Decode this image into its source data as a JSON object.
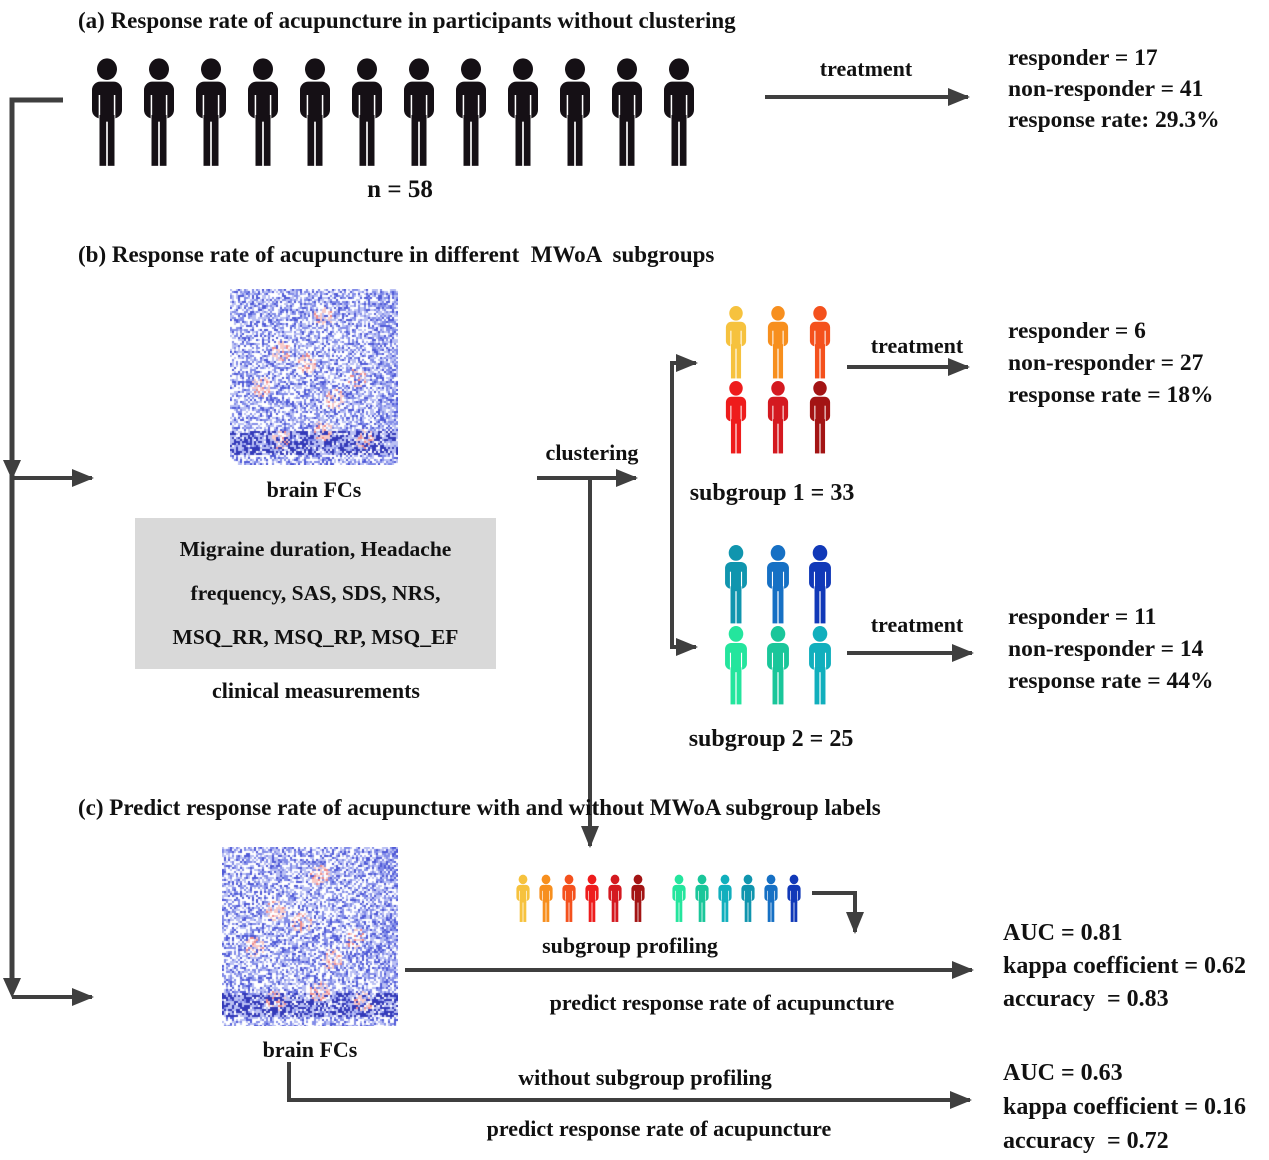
{
  "figure": {
    "arrow_color": "#3f3f3f",
    "clinical_box_bg": "#d9d9d9"
  },
  "section_a": {
    "title": "(a) Response rate of acupuncture in participants without clustering",
    "people_colors": [
      "#151015",
      "#151015",
      "#151015",
      "#151015",
      "#151015",
      "#151015",
      "#151015",
      "#151015",
      "#151015",
      "#151015",
      "#151015",
      "#151015"
    ],
    "n_label": "n = 58",
    "treatment_label": "treatment",
    "results": [
      "responder = 17",
      "non-responder = 41",
      "response rate: 29.3%"
    ]
  },
  "section_b": {
    "title": "(b) Response rate of acupuncture in different  MWoA  subgroups",
    "brain_fc_label": "brain FCs",
    "clinical_box": [
      "Migraine duration, Headache",
      "frequency, SAS, SDS, NRS,",
      "MSQ_RR, MSQ_RP, MSQ_EF"
    ],
    "clinical_label": "clinical measurements",
    "clustering_label": "clustering",
    "subgroup1": {
      "people_colors": [
        "#f6c23e",
        "#f78f1e",
        "#f4511d",
        "#ee1c1c",
        "#d41920",
        "#a31414"
      ],
      "label": "subgroup 1 = 33",
      "treatment_label": "treatment",
      "results": [
        "responder = 6",
        "non-responder = 27",
        "response rate = 18%"
      ]
    },
    "subgroup2": {
      "people_colors": [
        "#1095ae",
        "#1670c4",
        "#1139b8",
        "#24e59d",
        "#1ac69a",
        "#11afbd"
      ],
      "label": "subgroup 2 = 25",
      "treatment_label": "treatment",
      "results": [
        "responder = 11",
        "non-responder = 14",
        "response rate = 44%"
      ]
    }
  },
  "section_c": {
    "title": "(c) Predict response rate of acupuncture with and without MWoA subgroup labels",
    "brain_fc_label": "brain FCs",
    "profile_people_colors": [
      "#f6c23e",
      "#f78f1e",
      "#f4511d",
      "#ee1c1c",
      "#d41920",
      "#a31414",
      "#24e59d",
      "#1ac69a",
      "#11afbd",
      "#1095ae",
      "#1670c4",
      "#1139b8"
    ],
    "subgroup_profiling_label": "subgroup profiling",
    "predict_label_with": "predict response rate of acupuncture",
    "results_with": [
      "AUC = 0.81",
      "kappa coefficient = 0.62",
      "accuracy  = 0.83"
    ],
    "without_label": "without subgroup profiling",
    "predict_label_without": "predict response rate of acupuncture",
    "results_without": [
      "AUC = 0.63",
      "kappa coefficient = 0.16",
      "accuracy  = 0.72"
    ]
  }
}
